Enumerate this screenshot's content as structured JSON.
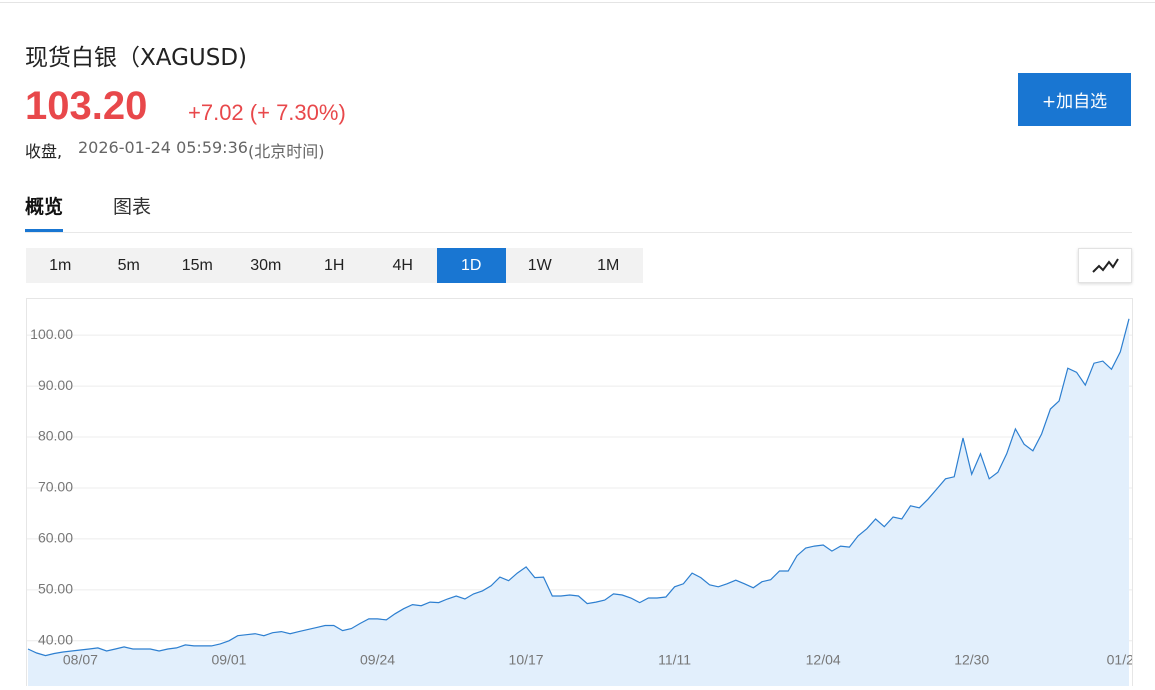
{
  "header": {
    "title": "现货白银（XAGUSD)",
    "price": "103.20",
    "change": "+7.02 (+ 7.30%)",
    "status": "收盘,",
    "timestamp": "2026-01-24 05:59:36",
    "timezone": "(北京时间)"
  },
  "button": "+加自选",
  "tabs": [
    "概览",
    "图表"
  ],
  "active_tab": 0,
  "intervals": [
    "1m",
    "5m",
    "15m",
    "30m",
    "1H",
    "4H",
    "1D",
    "1W",
    "1M"
  ],
  "active_interval": 6,
  "chart_data": {
    "type": "area",
    "color": "#2d7fd0",
    "fill": "#e2effc",
    "grid": true,
    "ylim": [
      32.7,
      106.7
    ],
    "yticks": [
      {
        "value": 40,
        "label": "40.00"
      },
      {
        "value": 50,
        "label": "50.00"
      },
      {
        "value": 60,
        "label": "60.00"
      },
      {
        "value": 70,
        "label": "70.00"
      },
      {
        "value": 80,
        "label": "80.00"
      },
      {
        "value": 90,
        "label": "90.00"
      },
      {
        "value": 100,
        "label": "100.00"
      }
    ],
    "categories": [
      null,
      null,
      null,
      null,
      null,
      null,
      "08/07",
      null,
      null,
      null,
      null,
      null,
      null,
      null,
      null,
      null,
      null,
      null,
      null,
      null,
      null,
      null,
      null,
      "09/01",
      null,
      null,
      null,
      null,
      null,
      null,
      null,
      null,
      null,
      null,
      null,
      null,
      null,
      null,
      null,
      null,
      "09/24",
      null,
      null,
      null,
      null,
      null,
      null,
      null,
      null,
      null,
      null,
      null,
      null,
      null,
      null,
      null,
      null,
      "10/17",
      null,
      null,
      null,
      null,
      null,
      null,
      null,
      null,
      null,
      null,
      null,
      null,
      null,
      null,
      null,
      null,
      "11/11",
      null,
      null,
      null,
      null,
      null,
      null,
      null,
      null,
      null,
      null,
      null,
      null,
      null,
      null,
      null,
      null,
      "12/04",
      null,
      null,
      null,
      null,
      null,
      null,
      null,
      null,
      null,
      null,
      null,
      null,
      null,
      null,
      null,
      null,
      "12/30",
      null,
      null,
      null,
      null,
      null,
      null,
      null,
      null,
      null,
      null,
      null,
      null,
      null,
      null,
      null,
      null,
      "01/2",
      null
    ],
    "values": [
      38.4,
      37.6,
      37.1,
      37.5,
      37.8,
      38.0,
      38.2,
      38.4,
      38.6,
      38.0,
      38.4,
      38.8,
      38.4,
      38.4,
      38.4,
      38.0,
      38.4,
      38.6,
      39.2,
      39.0,
      39.0,
      39.0,
      39.4,
      40.0,
      41.0,
      41.2,
      41.4,
      41.0,
      41.6,
      41.8,
      41.4,
      41.8,
      42.2,
      42.6,
      43.0,
      43.0,
      42.0,
      42.4,
      43.4,
      44.3,
      44.3,
      44.1,
      45.3,
      46.3,
      47.1,
      46.9,
      47.6,
      47.5,
      48.2,
      48.8,
      48.2,
      49.2,
      49.8,
      50.8,
      52.5,
      51.8,
      53.3,
      54.5,
      52.4,
      52.5,
      48.8,
      48.8,
      49.0,
      48.8,
      47.3,
      47.6,
      48.0,
      49.2,
      49.0,
      48.4,
      47.5,
      48.4,
      48.4,
      48.6,
      50.6,
      51.2,
      53.3,
      52.4,
      51.0,
      50.6,
      51.2,
      51.9,
      51.2,
      50.4,
      51.6,
      52.0,
      53.7,
      53.7,
      56.7,
      58.2,
      58.6,
      58.8,
      57.6,
      58.6,
      58.4,
      60.6,
      62.0,
      63.9,
      62.4,
      64.3,
      63.9,
      66.5,
      66.1,
      67.8,
      69.8,
      71.8,
      72.2,
      79.8,
      72.7,
      76.7,
      71.8,
      73.1,
      76.7,
      81.6,
      78.6,
      77.3,
      80.6,
      85.5,
      87.1,
      93.5,
      92.7,
      90.2,
      94.5,
      94.9,
      93.3,
      96.7,
      103.2
    ]
  }
}
